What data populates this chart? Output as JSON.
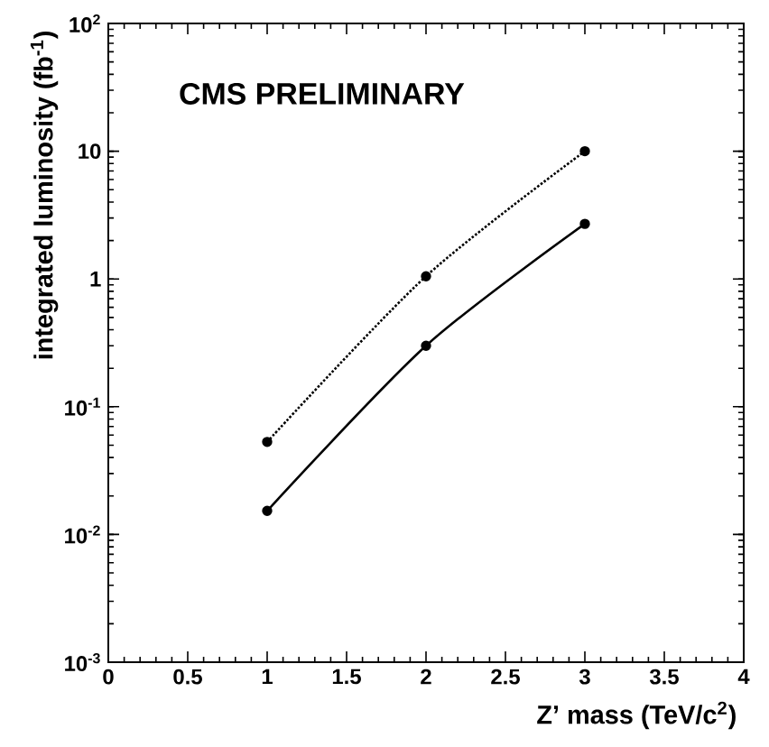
{
  "chart_data": {
    "type": "line",
    "xlabel": "Z’ mass (TeV/c$^{2}$)",
    "ylabel": "integrated luminosity (fb$^{-1}$)",
    "annotations": [
      "CMS PRELIMINARY"
    ],
    "x": [
      1,
      2,
      3
    ],
    "series": [
      {
        "color": "#000000",
        "line_style": "dotted",
        "values": [
          0.053,
          1.05,
          10
        ]
      },
      {
        "color": "#000000",
        "line_style": "solid",
        "values": [
          0.0153,
          0.3,
          2.7
        ]
      }
    ],
    "log": "y",
    "marker": "circle",
    "xlim": [
      0,
      4
    ],
    "ylim": [
      0.001,
      100
    ],
    "xticks": [
      0,
      0.5,
      1,
      1.5,
      2,
      2.5,
      3,
      3.5,
      4
    ],
    "yticks": [
      {
        "value": 0.001,
        "label": "10$^{-3}$"
      },
      {
        "value": 0.01,
        "label": "10$^{-2}$"
      },
      {
        "value": 0.1,
        "label": "10$^{-1}$"
      },
      1,
      10,
      {
        "value": 100,
        "label": "10$^{2}$"
      }
    ]
  }
}
